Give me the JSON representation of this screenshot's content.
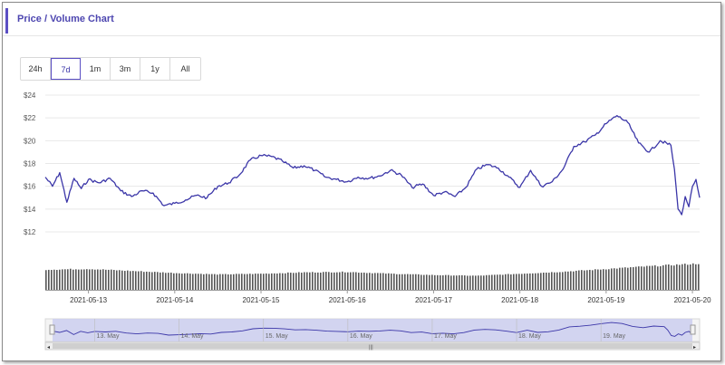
{
  "header": {
    "title": "Price / Volume Chart"
  },
  "range_buttons": [
    {
      "label": "24h",
      "active": false
    },
    {
      "label": "7d",
      "active": true
    },
    {
      "label": "1m",
      "active": false
    },
    {
      "label": "3m",
      "active": false
    },
    {
      "label": "1y",
      "active": false
    },
    {
      "label": "All",
      "active": false
    }
  ],
  "colors": {
    "accent": "#5b4fc4",
    "line": "#3b36a8",
    "volume": "#555555",
    "grid": "#e8e8e8",
    "navigator": "#c9ccef"
  },
  "chart_data": {
    "type": "line",
    "title": "",
    "ylim": [
      12,
      24
    ],
    "y_ticks": [
      12,
      14,
      16,
      18,
      20,
      22,
      24
    ],
    "y_tick_labels": [
      "$12",
      "$14",
      "$16",
      "$18",
      "$20",
      "$22",
      "$24"
    ],
    "x_range": [
      "2021-05-12T12:00",
      "2021-05-20T02:00"
    ],
    "x_tick_labels": [
      "2021-05-13",
      "2021-05-14",
      "2021-05-15",
      "2021-05-16",
      "2021-05-17",
      "2021-05-18",
      "2021-05-19",
      "2021-05-20"
    ],
    "grid": true,
    "series": [
      {
        "values_time": [
          "2021-05-12T12:00",
          "2021-05-12T14:00",
          "2021-05-12T16:00",
          "2021-05-12T18:00",
          "2021-05-12T20:00",
          "2021-05-12T22:00",
          "2021-05-13T00:00",
          "2021-05-13T03:00",
          "2021-05-13T06:00",
          "2021-05-13T09:00",
          "2021-05-13T12:00",
          "2021-05-13T15:00",
          "2021-05-13T18:00",
          "2021-05-13T21:00",
          "2021-05-14T00:00",
          "2021-05-14T03:00",
          "2021-05-14T06:00",
          "2021-05-14T09:00",
          "2021-05-14T12:00",
          "2021-05-14T15:00",
          "2021-05-14T18:00",
          "2021-05-14T21:00",
          "2021-05-15T00:00",
          "2021-05-15T03:00",
          "2021-05-15T06:00",
          "2021-05-15T09:00",
          "2021-05-15T12:00",
          "2021-05-15T15:00",
          "2021-05-15T18:00",
          "2021-05-15T21:00",
          "2021-05-16T00:00",
          "2021-05-16T03:00",
          "2021-05-16T06:00",
          "2021-05-16T09:00",
          "2021-05-16T12:00",
          "2021-05-16T15:00",
          "2021-05-16T18:00",
          "2021-05-16T21:00",
          "2021-05-17T00:00",
          "2021-05-17T03:00",
          "2021-05-17T06:00",
          "2021-05-17T09:00",
          "2021-05-17T12:00",
          "2021-05-17T15:00",
          "2021-05-17T18:00",
          "2021-05-17T21:00",
          "2021-05-18T00:00",
          "2021-05-18T03:00",
          "2021-05-18T06:00",
          "2021-05-18T09:00",
          "2021-05-18T12:00",
          "2021-05-18T15:00",
          "2021-05-18T18:00",
          "2021-05-18T21:00",
          "2021-05-19T00:00",
          "2021-05-19T03:00",
          "2021-05-19T06:00",
          "2021-05-19T09:00",
          "2021-05-19T12:00",
          "2021-05-19T15:00",
          "2021-05-19T18:00",
          "2021-05-19T19:00",
          "2021-05-19T20:00",
          "2021-05-19T21:00",
          "2021-05-19T22:00",
          "2021-05-19T23:00",
          "2021-05-20T00:00",
          "2021-05-20T01:00",
          "2021-05-20T02:00"
        ],
        "values": [
          16.8,
          16.0,
          17.2,
          14.6,
          16.7,
          15.8,
          16.6,
          16.3,
          16.7,
          15.6,
          15.1,
          15.6,
          15.4,
          14.3,
          14.5,
          14.8,
          15.2,
          15.0,
          16.0,
          16.3,
          17.0,
          18.3,
          18.7,
          18.6,
          18.2,
          17.6,
          17.8,
          17.4,
          16.8,
          16.6,
          16.4,
          16.8,
          16.7,
          16.9,
          17.4,
          17.0,
          15.9,
          16.2,
          15.2,
          15.5,
          15.1,
          15.9,
          17.5,
          17.9,
          17.6,
          16.8,
          15.9,
          17.4,
          16.0,
          16.4,
          17.5,
          19.5,
          19.9,
          20.5,
          21.5,
          22.2,
          21.6,
          19.8,
          19.0,
          20.0,
          19.6,
          17.5,
          14.0,
          13.5,
          15.1,
          14.2,
          16.0,
          16.6,
          15.0
        ]
      }
    ],
    "volume": {
      "values_time": [
        "2021-05-12T12:00",
        "2021-05-13T00:00",
        "2021-05-13T12:00",
        "2021-05-14T00:00",
        "2021-05-14T12:00",
        "2021-05-15T00:00",
        "2021-05-15T12:00",
        "2021-05-16T00:00",
        "2021-05-16T12:00",
        "2021-05-17T00:00",
        "2021-05-17T12:00",
        "2021-05-18T00:00",
        "2021-05-18T12:00",
        "2021-05-19T00:00",
        "2021-05-19T12:00",
        "2021-05-20T02:00"
      ],
      "values": [
        0.95,
        1.0,
        0.85,
        0.7,
        0.6,
        0.65,
        0.75,
        0.78,
        0.65,
        0.55,
        0.5,
        0.65,
        0.8,
        1.0,
        1.2,
        1.4
      ]
    },
    "navigator": {
      "labels": [
        "13. May",
        "14. May",
        "15. May",
        "16. May",
        "17. May",
        "18. May",
        "19. May"
      ]
    }
  }
}
